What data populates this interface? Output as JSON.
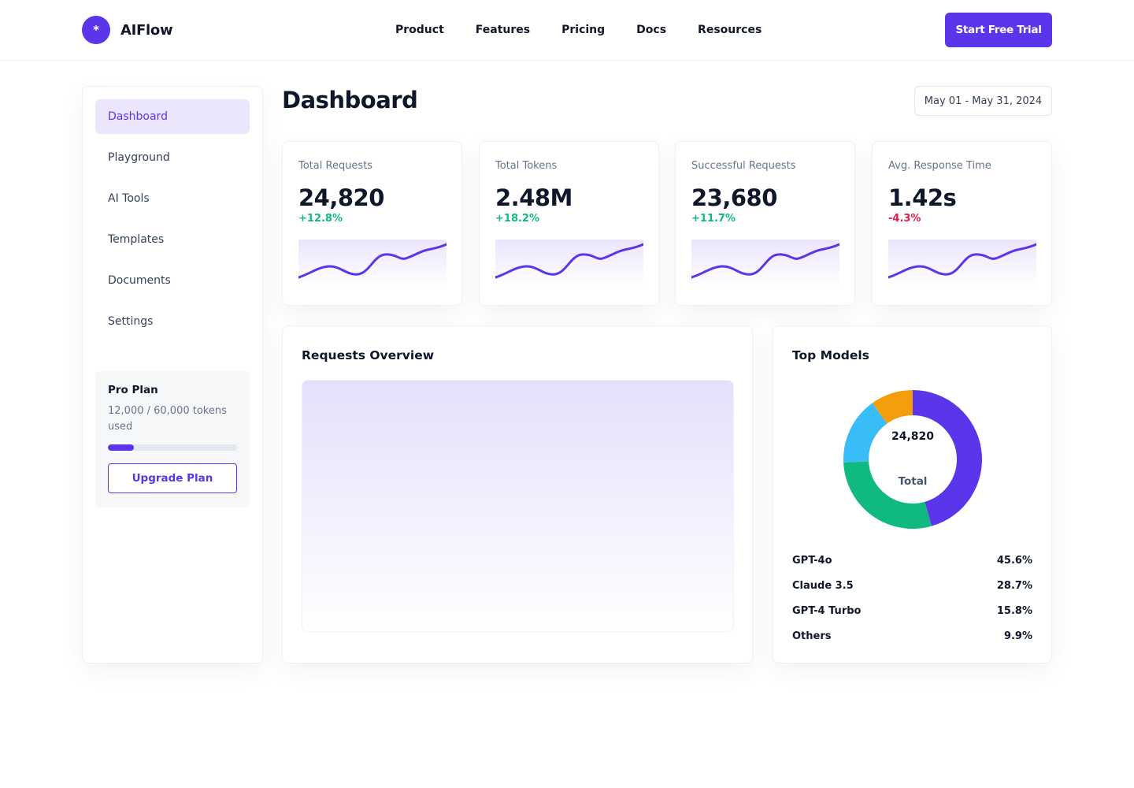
{
  "brand": {
    "mark": "*",
    "name": "AIFlow",
    "accent": "#5b35ea"
  },
  "nav": [
    {
      "label": "Product"
    },
    {
      "label": "Features"
    },
    {
      "label": "Pricing"
    },
    {
      "label": "Docs"
    },
    {
      "label": "Resources"
    }
  ],
  "cta": {
    "label": "Start Free Trial"
  },
  "sidebar": {
    "items": [
      {
        "label": "Dashboard",
        "active": true
      },
      {
        "label": "Playground"
      },
      {
        "label": "AI Tools"
      },
      {
        "label": "Templates"
      },
      {
        "label": "Documents"
      },
      {
        "label": "Settings"
      }
    ],
    "plan": {
      "title": "Pro Plan",
      "usage": "12,000 / 60,000 tokens used",
      "used_fraction": 0.2,
      "upgrade_label": "Upgrade Plan"
    }
  },
  "main": {
    "title": "Dashboard",
    "date_range": "May 01 - May 31, 2024",
    "stats": [
      {
        "label": "Total Requests",
        "value": "24,820",
        "delta": "+12.8%",
        "trend": "up"
      },
      {
        "label": "Total Tokens",
        "value": "2.48M",
        "delta": "+18.2%",
        "trend": "up"
      },
      {
        "label": "Successful Requests",
        "value": "23,680",
        "delta": "+11.7%",
        "trend": "up"
      },
      {
        "label": "Avg. Response Time",
        "value": "1.42s",
        "delta": "-4.3%",
        "trend": "down"
      }
    ],
    "overview": {
      "title": "Requests Overview"
    },
    "top_models": {
      "title": "Top Models",
      "total": "24,820",
      "total_caption": "Total",
      "models": [
        {
          "name": "GPT-4o",
          "percent": "45.6%",
          "value": 45.6,
          "color": "#5b35ea"
        },
        {
          "name": "Claude 3.5",
          "percent": "28.7%",
          "value": 28.7,
          "color": "#10b981"
        },
        {
          "name": "GPT-4 Turbo",
          "percent": "15.8%",
          "value": 15.8,
          "color": "#38bdf8"
        },
        {
          "name": "Others",
          "percent": "9.9%",
          "value": 9.9,
          "color": "#f59e0b"
        }
      ]
    }
  },
  "colors": {
    "positive": "#10b981",
    "negative": "#e11d48",
    "spark_line": "#5b35ea",
    "spark_fill": "#ebe5fd"
  }
}
